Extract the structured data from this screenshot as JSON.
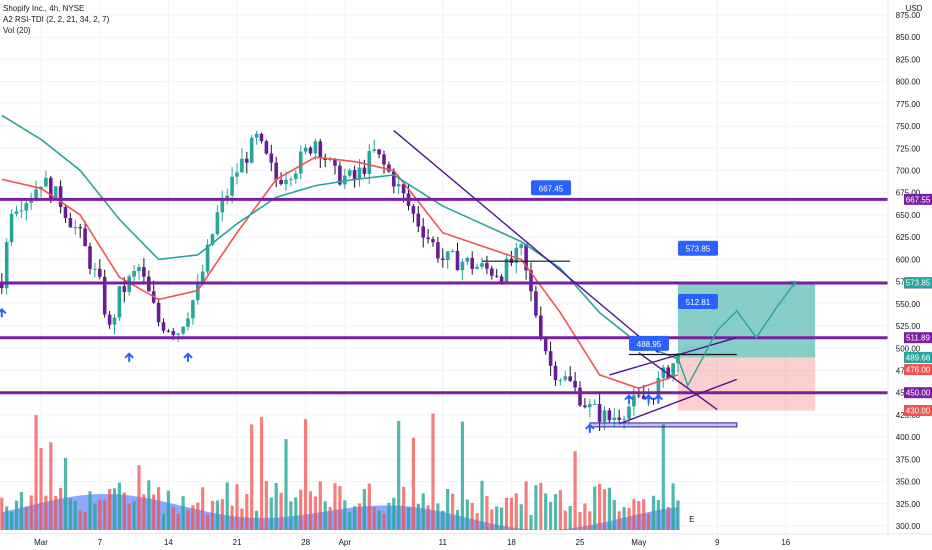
{
  "header": {
    "symbol_line": "Shopify Inc., 4h, NYSE",
    "indicator_line": "A2 RSI-TDI (2, 2, 21, 34, 2, 7)",
    "volume_line": "Vol (20)"
  },
  "chart_data": {
    "type": "candlestick",
    "currency_label": "USD",
    "y_axis": {
      "min": 300,
      "max": 875,
      "ticks": [
        300,
        325,
        350,
        375,
        400,
        425,
        450,
        475,
        500,
        525,
        550,
        575,
        600,
        625,
        650,
        675,
        700,
        725,
        750,
        775,
        800,
        825,
        850,
        875
      ]
    },
    "x_axis": {
      "labels": [
        {
          "text": "Mar",
          "date": "Mar 1"
        },
        {
          "text": "7",
          "date": "Mar 7"
        },
        {
          "text": "14",
          "date": "Mar 14"
        },
        {
          "text": "21",
          "date": "Mar 21"
        },
        {
          "text": "28",
          "date": "Mar 28"
        },
        {
          "text": "Apr",
          "date": "Apr 1"
        },
        {
          "text": "11",
          "date": "Apr 11"
        },
        {
          "text": "18",
          "date": "Apr 18"
        },
        {
          "text": "25",
          "date": "Apr 25"
        },
        {
          "text": "May",
          "date": "May 1"
        },
        {
          "text": "9",
          "date": "May 9"
        },
        {
          "text": "16",
          "date": "May 16"
        }
      ]
    },
    "price_path": [
      {
        "date": "Feb 25",
        "price": 575
      },
      {
        "date": "Feb 26",
        "price": 660
      },
      {
        "date": "Feb 28",
        "price": 672
      },
      {
        "date": "Mar 1",
        "price": 690
      },
      {
        "date": "Mar 3",
        "price": 665
      },
      {
        "date": "Mar 5",
        "price": 625
      },
      {
        "date": "Mar 7",
        "price": 570
      },
      {
        "date": "Mar 8",
        "price": 520
      },
      {
        "date": "Mar 9",
        "price": 560
      },
      {
        "date": "Mar 11",
        "price": 590
      },
      {
        "date": "Mar 13",
        "price": 530
      },
      {
        "date": "Mar 15",
        "price": 520
      },
      {
        "date": "Mar 17",
        "price": 565
      },
      {
        "date": "Mar 19",
        "price": 650
      },
      {
        "date": "Mar 21",
        "price": 700
      },
      {
        "date": "Mar 23",
        "price": 735
      },
      {
        "date": "Mar 25",
        "price": 690
      },
      {
        "date": "Mar 27",
        "price": 705
      },
      {
        "date": "Mar 29",
        "price": 735
      },
      {
        "date": "Mar 31",
        "price": 695
      },
      {
        "date": "Apr 2",
        "price": 690
      },
      {
        "date": "Apr 4",
        "price": 720
      },
      {
        "date": "Apr 6",
        "price": 690
      },
      {
        "date": "Apr 8",
        "price": 650
      },
      {
        "date": "Apr 11",
        "price": 600
      },
      {
        "date": "Apr 13",
        "price": 598
      },
      {
        "date": "Apr 15",
        "price": 590
      },
      {
        "date": "Apr 17",
        "price": 585
      },
      {
        "date": "Apr 19",
        "price": 608
      },
      {
        "date": "Apr 20",
        "price": 560
      },
      {
        "date": "Apr 22",
        "price": 480
      },
      {
        "date": "Apr 24",
        "price": 460
      },
      {
        "date": "Apr 26",
        "price": 432
      },
      {
        "date": "Apr 28",
        "price": 420
      },
      {
        "date": "Apr 30",
        "price": 435
      },
      {
        "date": "May 2",
        "price": 445
      },
      {
        "date": "May 4",
        "price": 476
      },
      {
        "date": "May 5",
        "price": 490
      }
    ],
    "series": [
      {
        "name": "",
        "type": "ema-short",
        "color": "#ef5350",
        "values": [
          {
            "date": "Feb 25",
            "price": 690
          },
          {
            "date": "Mar 1",
            "price": 680
          },
          {
            "date": "Mar 5",
            "price": 650
          },
          {
            "date": "Mar 9",
            "price": 580
          },
          {
            "date": "Mar 13",
            "price": 555
          },
          {
            "date": "Mar 17",
            "price": 565
          },
          {
            "date": "Mar 21",
            "price": 630
          },
          {
            "date": "Mar 25",
            "price": 690
          },
          {
            "date": "Mar 29",
            "price": 715
          },
          {
            "date": "Apr 2",
            "price": 710
          },
          {
            "date": "Apr 6",
            "price": 700
          },
          {
            "date": "Apr 11",
            "price": 630
          },
          {
            "date": "Apr 15",
            "price": 615
          },
          {
            "date": "Apr 19",
            "price": 600
          },
          {
            "date": "Apr 23",
            "price": 540
          },
          {
            "date": "Apr 27",
            "price": 470
          },
          {
            "date": "May 1",
            "price": 455
          },
          {
            "date": "May 5",
            "price": 470
          }
        ]
      },
      {
        "name": "",
        "type": "ema-long",
        "color": "#26a69a",
        "values": [
          {
            "date": "Feb 25",
            "price": 762
          },
          {
            "date": "Mar 1",
            "price": 735
          },
          {
            "date": "Mar 5",
            "price": 700
          },
          {
            "date": "Mar 9",
            "price": 645
          },
          {
            "date": "Mar 13",
            "price": 600
          },
          {
            "date": "Mar 17",
            "price": 605
          },
          {
            "date": "Mar 21",
            "price": 640
          },
          {
            "date": "Mar 25",
            "price": 670
          },
          {
            "date": "Mar 29",
            "price": 683
          },
          {
            "date": "Apr 2",
            "price": 690
          },
          {
            "date": "Apr 6",
            "price": 695
          },
          {
            "date": "Apr 11",
            "price": 660
          },
          {
            "date": "Apr 15",
            "price": 640
          },
          {
            "date": "Apr 19",
            "price": 620
          },
          {
            "date": "Apr 23",
            "price": 590
          },
          {
            "date": "Apr 27",
            "price": 540
          },
          {
            "date": "May 1",
            "price": 505
          },
          {
            "date": "May 5",
            "price": 488
          }
        ]
      }
    ],
    "horizontal_levels": [
      {
        "price": 667.55,
        "label": "667.55",
        "color": "#7b1fa2"
      },
      {
        "price": 573.48,
        "label": "573.48",
        "color": "#7b1fa2"
      },
      {
        "price": 511.89,
        "label": "511.89",
        "color": "#7b1fa2"
      },
      {
        "price": 450.0,
        "label": "450.00",
        "color": "#7b1fa2"
      }
    ],
    "axis_tags": [
      {
        "price": 573.85,
        "label": "573.85",
        "color": "#26a69a"
      },
      {
        "price": 489.66,
        "label": "489.66",
        "color": "#26a69a"
      },
      {
        "price": 476.0,
        "label": "476.00",
        "color": "#ef5350"
      },
      {
        "price": 430.0,
        "label": "430.00",
        "color": "#ef5350"
      }
    ],
    "callouts": [
      {
        "label": "667.45",
        "price": 680,
        "date": "Apr 20"
      },
      {
        "label": "573.85",
        "price": 612,
        "date": "May 5"
      },
      {
        "label": "512.81",
        "price": 552,
        "date": "May 5"
      },
      {
        "label": "488.95",
        "price": 505,
        "date": "Apr 30"
      }
    ],
    "trade": {
      "entry_price": 489.66,
      "target_price": 573.85,
      "stop_price": 430.0,
      "start_date": "May 5",
      "end_date": "May 19"
    },
    "volume_note": "E",
    "legend": "none",
    "grid": true
  }
}
